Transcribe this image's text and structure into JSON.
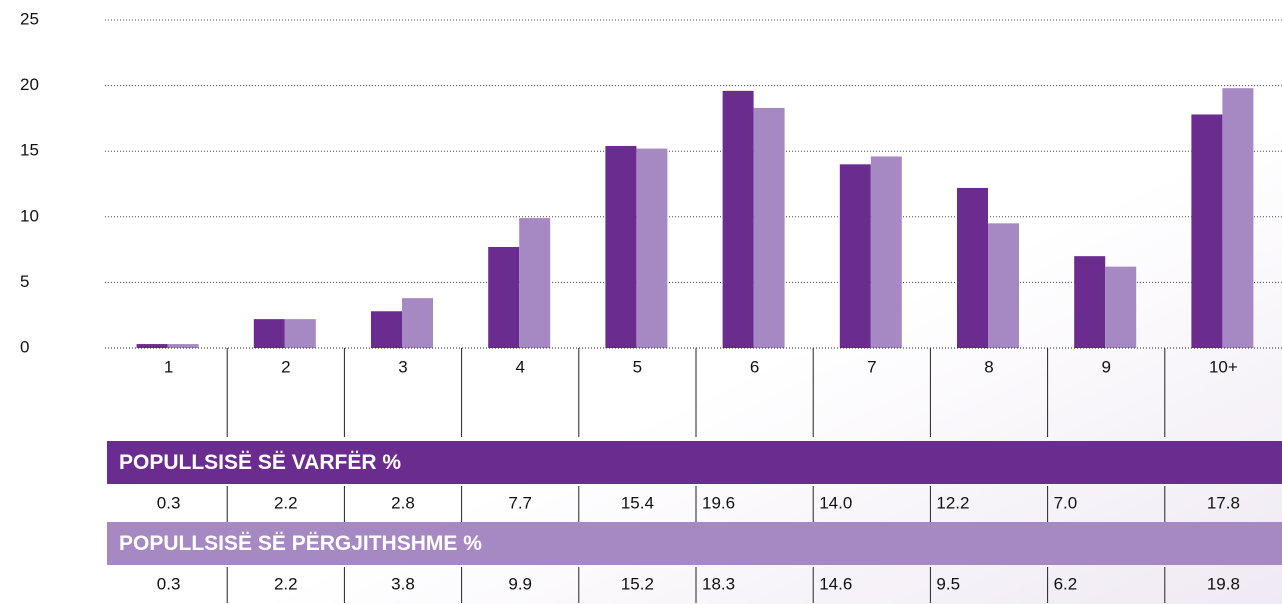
{
  "chart_data": {
    "type": "bar",
    "categories": [
      "1",
      "2",
      "3",
      "4",
      "5",
      "6",
      "7",
      "8",
      "9",
      "10+"
    ],
    "series": [
      {
        "name": "POPULLSISË SË VARFËR %",
        "color": "#6b2c8f",
        "values": [
          0.3,
          2.2,
          2.8,
          7.7,
          15.4,
          19.6,
          14.0,
          12.2,
          7.0,
          17.8
        ],
        "value_labels": [
          "0.3",
          "2.2",
          "2.8",
          "7.7",
          "15.4",
          "19.6",
          "14.0",
          "12.2",
          "7.0",
          "17.8"
        ]
      },
      {
        "name": "POPULLSISË SË PËRGJITHSHME %",
        "color": "#a688c2",
        "values": [
          0.3,
          2.2,
          3.8,
          9.9,
          15.2,
          18.3,
          14.6,
          9.5,
          6.2,
          19.8
        ],
        "value_labels": [
          "0.3",
          "2.2",
          "3.8",
          "9.9",
          "15.2",
          "18.3",
          "14.6",
          "9.5",
          "6.2",
          "19.8"
        ]
      }
    ],
    "ylim": [
      0,
      25
    ],
    "yticks": [
      0,
      5,
      10,
      15,
      20,
      25
    ],
    "grid": true
  }
}
